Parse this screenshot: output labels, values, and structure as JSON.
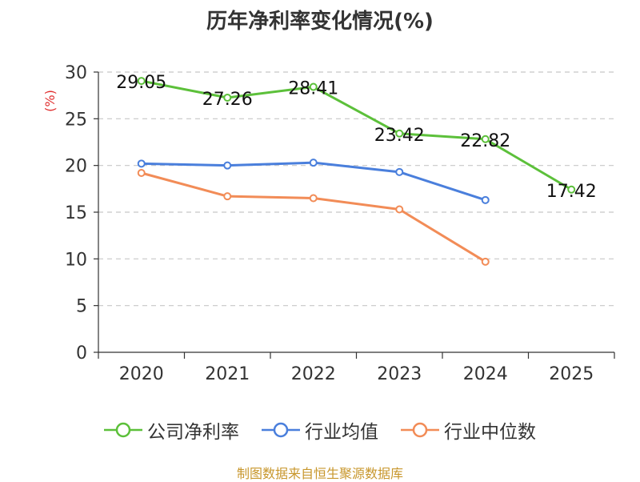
{
  "chart_data": {
    "type": "line",
    "title": "历年净利率变化情况(%)",
    "ylabel": "(%)",
    "xlabel": "",
    "categories": [
      "2020",
      "2021",
      "2022",
      "2023",
      "2024",
      "2025"
    ],
    "ylim": [
      0,
      30
    ],
    "yticks": [
      0,
      5,
      10,
      15,
      20,
      25,
      30
    ],
    "grid": true,
    "legend_position": "bottom",
    "series": [
      {
        "name": "公司净利率",
        "color": "#5cc03a",
        "values": [
          29.05,
          27.26,
          28.41,
          23.42,
          22.82,
          17.42
        ],
        "labels": [
          "29.05",
          "27.26",
          "28.41",
          "23.42",
          "22.82",
          "17.42"
        ]
      },
      {
        "name": "行业均值",
        "color": "#4a7fdc",
        "values": [
          20.2,
          20.0,
          20.3,
          19.3,
          16.3,
          null
        ]
      },
      {
        "name": "行业中位数",
        "color": "#f28c57",
        "values": [
          19.2,
          16.7,
          16.5,
          15.3,
          9.7,
          null
        ]
      }
    ]
  },
  "footer": {
    "source": "制图数据来自恒生聚源数据库"
  }
}
